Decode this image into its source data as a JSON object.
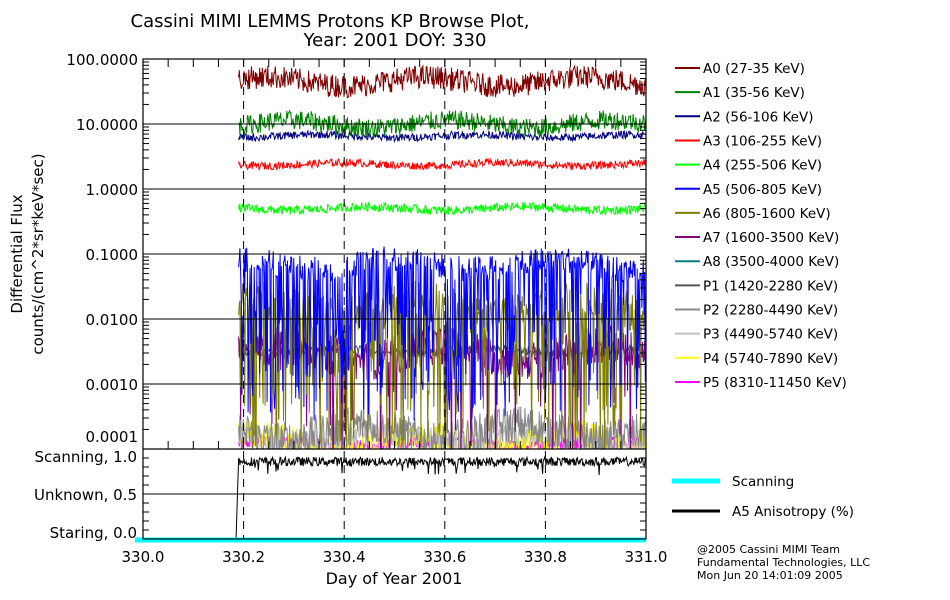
{
  "chart_data": {
    "type": "line",
    "title": "Cassini MIMI LEMMS Protons KP Browse Plot,",
    "subtitle": "Year: 2001 DOY: 330",
    "xlabel": "Day of Year 2001",
    "ylabel_line1": "Differential Flux",
    "ylabel_line2": "counts/(cm^2*sr*keV*sec)",
    "xlim": [
      330.0,
      331.0
    ],
    "ylim": [
      0.0001,
      100
    ],
    "yscale": "log",
    "x_ticks": [
      "330.0",
      "330.2",
      "330.4",
      "330.6",
      "330.8",
      "331.0"
    ],
    "y_ticks": [
      "100.0000",
      "10.0000",
      "1.0000",
      "0.1000",
      "0.0100",
      "0.0010",
      "0.0001"
    ],
    "data_start_x": 330.19,
    "series": [
      {
        "name": "A0 (27-35 KeV)",
        "color": "#800000",
        "level": 45,
        "spread": 0.18,
        "drops": 0
      },
      {
        "name": "A1 (35-56 KeV)",
        "color": "#008000",
        "level": 10,
        "spread": 0.15,
        "drops": 0
      },
      {
        "name": "A2 (56-106 KeV)",
        "color": "#000080",
        "level": 6.5,
        "spread": 0.06,
        "drops": 0
      },
      {
        "name": "A3 (106-255 KeV)",
        "color": "#ff0000",
        "level": 2.4,
        "spread": 0.06,
        "drops": 0
      },
      {
        "name": "A4 (255-506 KeV)",
        "color": "#00ff00",
        "level": 0.5,
        "spread": 0.07,
        "drops": 0
      },
      {
        "name": "A5 (506-805 KeV)",
        "color": "#0000ff",
        "level": 0.07,
        "spread": 0.2,
        "drops": 0.35
      },
      {
        "name": "A6 (805-1600 KeV)",
        "color": "#808000",
        "level": 0.015,
        "spread": 0.3,
        "drops": 0.3
      },
      {
        "name": "A7 (1600-3500 KeV)",
        "color": "#800080",
        "level": 0.003,
        "spread": 0.3,
        "drops": 0.05
      },
      {
        "name": "A8 (3500-4000 KeV)",
        "color": "#008080",
        "level": 5e-05,
        "spread": 0.1,
        "drops": 0
      },
      {
        "name": "P1 (1420-2280 KeV)",
        "color": "#555555",
        "level": 0.0032,
        "spread": 0.07,
        "drops": 0
      },
      {
        "name": "P2 (2280-4490 KeV)",
        "color": "#888888",
        "level": 0.00018,
        "spread": 0.3,
        "drops": 0
      },
      {
        "name": "P3 (4490-5740 KeV)",
        "color": "#c0c0c0",
        "level": 0.00015,
        "spread": 0.2,
        "drops": 0
      },
      {
        "name": "P4 (5740-7890 KeV)",
        "color": "#ffff00",
        "level": 0.00013,
        "spread": 0.25,
        "drops": 0
      },
      {
        "name": "P5 (8310-11450 KeV)",
        "color": "#ff00ff",
        "level": 0.00012,
        "spread": 0.1,
        "drops": 0
      }
    ],
    "lower_panel": {
      "y_ticks": [
        "Scanning, 1.0",
        "Unknown, 0.5",
        "Staring, 0.0"
      ],
      "ylim": [
        0.0,
        1.0
      ],
      "series": [
        {
          "name": "Scanning",
          "color": "#00ffff",
          "value": 0.0
        },
        {
          "name": "A5 Anisotropy (%)",
          "color": "#000000",
          "level": 0.86,
          "spread": 0.05
        }
      ]
    },
    "footer": [
      "@2005 Cassini MIMI Team",
      "Fundamental Technologies, LLC",
      "Mon Jun 20 14:01:09 2005"
    ]
  }
}
